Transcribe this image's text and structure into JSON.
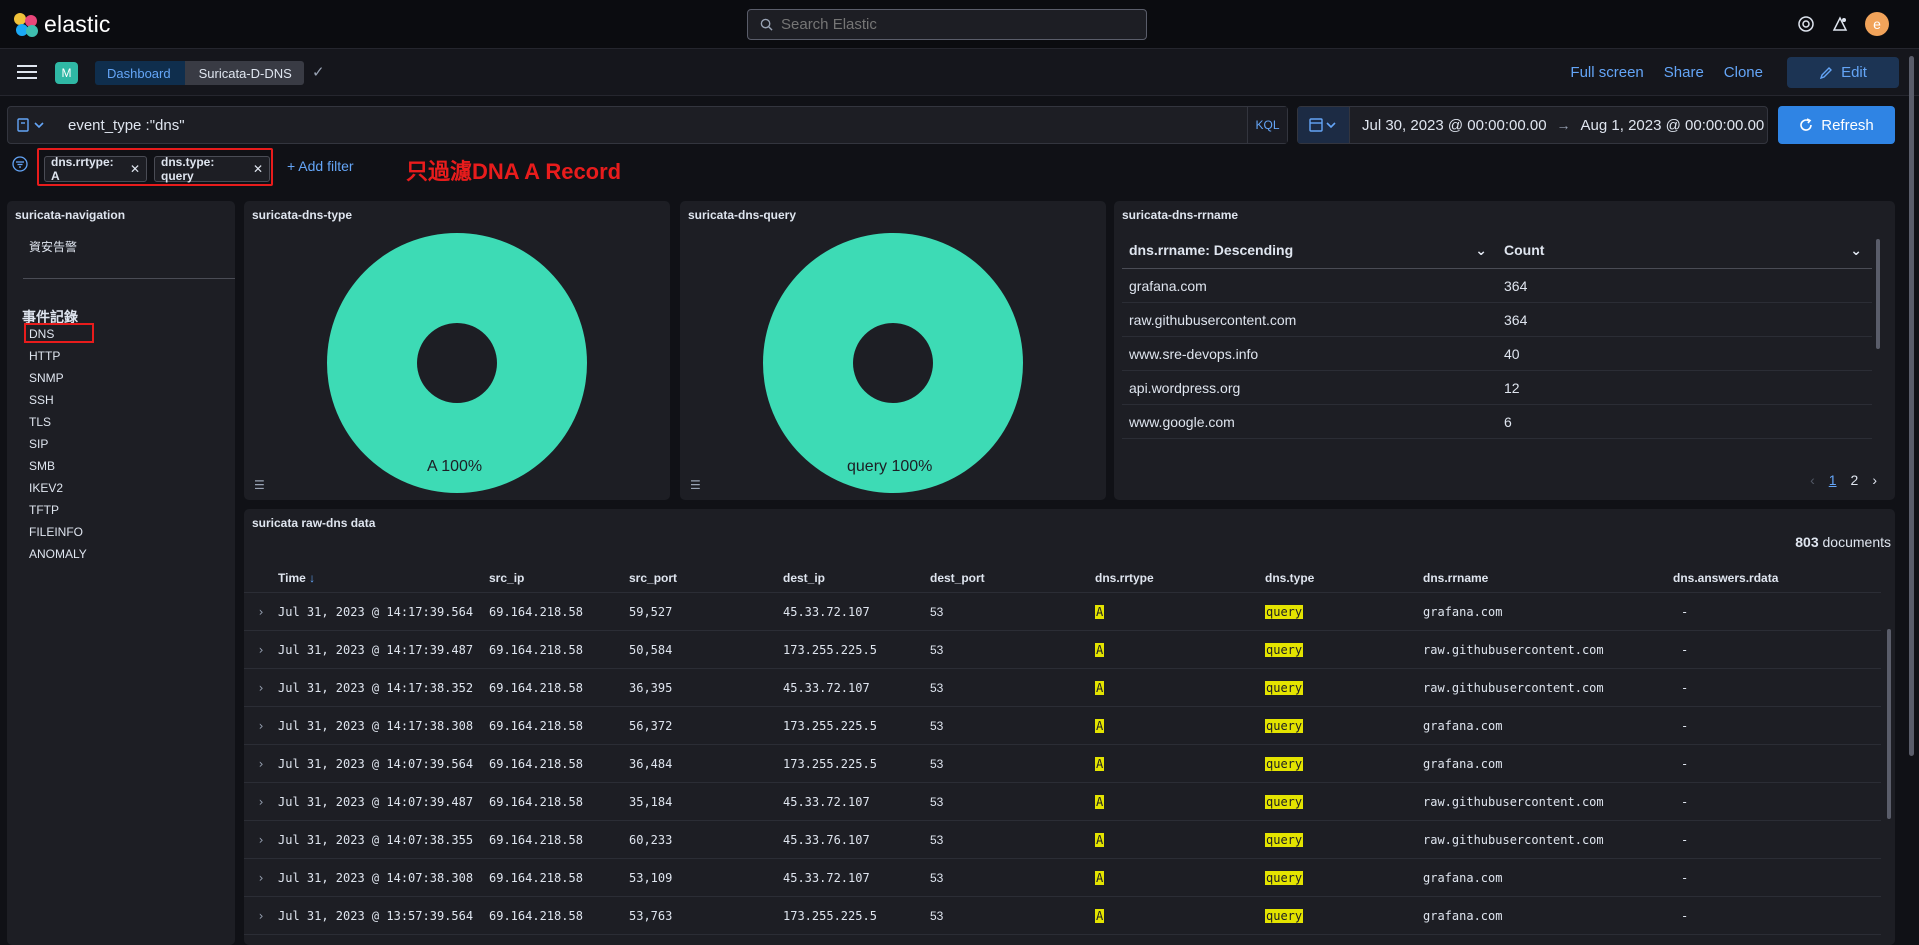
{
  "app": {
    "logo_text": "elastic",
    "search_placeholder": "Search Elastic",
    "avatar_letter": "e"
  },
  "nav": {
    "space_letter": "M",
    "breadcrumb_dashboard": "Dashboard",
    "breadcrumb_current": "Suricata-D-DNS",
    "full_screen": "Full screen",
    "share": "Share",
    "clone": "Clone",
    "edit": "Edit"
  },
  "query": {
    "value": "event_type :\"dns\"",
    "language": "KQL"
  },
  "time": {
    "start": "Jul 30, 2023 @ 00:00:00.00",
    "end": "Aug 1, 2023 @ 00:00:00.00",
    "refresh": "Refresh"
  },
  "filters": {
    "pills": [
      "dns.rrtype: A",
      "dns.type: query"
    ],
    "add_filter": "+ Add filter",
    "annotation": "只過濾DNA A Record"
  },
  "navigation_panel": {
    "title": "suricata-navigation",
    "top_item": "資安告警",
    "section_heading": "事件記錄",
    "items": [
      "DNS",
      "HTTP",
      "SNMP",
      "SSH",
      "TLS",
      "SIP",
      "SMB",
      "IKEV2",
      "TFTP",
      "FILEINFO",
      "ANOMALY"
    ]
  },
  "type_panel": {
    "title": "suricata-dns-type",
    "slice_label": "A 100%",
    "slice_color": "#3ddbb5"
  },
  "query_panel": {
    "title": "suricata-dns-query",
    "slice_label": "query 100%",
    "slice_color": "#3ddbb5"
  },
  "chart_data": [
    {
      "type": "pie",
      "title": "suricata-dns-type",
      "categories": [
        "A"
      ],
      "values": [
        100
      ]
    },
    {
      "type": "pie",
      "title": "suricata-dns-query",
      "categories": [
        "query"
      ],
      "values": [
        100
      ]
    }
  ],
  "rrname_panel": {
    "title": "suricata-dns-rrname",
    "col1": "dns.rrname: Descending",
    "col2": "Count",
    "rows": [
      {
        "name": "grafana.com",
        "count": "364"
      },
      {
        "name": "raw.githubusercontent.com",
        "count": "364"
      },
      {
        "name": "www.sre-devops.info",
        "count": "40"
      },
      {
        "name": "api.wordpress.org",
        "count": "12"
      },
      {
        "name": "www.google.com",
        "count": "6"
      }
    ],
    "page_current": "1",
    "page_next": "2"
  },
  "raw_panel": {
    "title": "suricata raw-dns data",
    "doc_count": "803",
    "doc_label": "documents",
    "columns": [
      "Time",
      "src_ip",
      "src_port",
      "dest_ip",
      "dest_port",
      "dns.rrtype",
      "dns.type",
      "dns.rrname",
      "dns.answers.rdata"
    ],
    "rows": [
      {
        "time": "Jul 31, 2023 @ 14:17:39.564",
        "src_ip": "69.164.218.58",
        "src_port": "59,527",
        "dest_ip": "45.33.72.107",
        "dest_port": "53",
        "rrtype": "A",
        "type": "query",
        "rrname": "grafana.com",
        "rdata": "-"
      },
      {
        "time": "Jul 31, 2023 @ 14:17:39.487",
        "src_ip": "69.164.218.58",
        "src_port": "50,584",
        "dest_ip": "173.255.225.5",
        "dest_port": "53",
        "rrtype": "A",
        "type": "query",
        "rrname": "raw.githubusercontent.com",
        "rdata": "-"
      },
      {
        "time": "Jul 31, 2023 @ 14:17:38.352",
        "src_ip": "69.164.218.58",
        "src_port": "36,395",
        "dest_ip": "45.33.72.107",
        "dest_port": "53",
        "rrtype": "A",
        "type": "query",
        "rrname": "raw.githubusercontent.com",
        "rdata": "-"
      },
      {
        "time": "Jul 31, 2023 @ 14:17:38.308",
        "src_ip": "69.164.218.58",
        "src_port": "56,372",
        "dest_ip": "173.255.225.5",
        "dest_port": "53",
        "rrtype": "A",
        "type": "query",
        "rrname": "grafana.com",
        "rdata": "-"
      },
      {
        "time": "Jul 31, 2023 @ 14:07:39.564",
        "src_ip": "69.164.218.58",
        "src_port": "36,484",
        "dest_ip": "173.255.225.5",
        "dest_port": "53",
        "rrtype": "A",
        "type": "query",
        "rrname": "grafana.com",
        "rdata": "-"
      },
      {
        "time": "Jul 31, 2023 @ 14:07:39.487",
        "src_ip": "69.164.218.58",
        "src_port": "35,184",
        "dest_ip": "45.33.72.107",
        "dest_port": "53",
        "rrtype": "A",
        "type": "query",
        "rrname": "raw.githubusercontent.com",
        "rdata": "-"
      },
      {
        "time": "Jul 31, 2023 @ 14:07:38.355",
        "src_ip": "69.164.218.58",
        "src_port": "60,233",
        "dest_ip": "45.33.76.107",
        "dest_port": "53",
        "rrtype": "A",
        "type": "query",
        "rrname": "raw.githubusercontent.com",
        "rdata": "-"
      },
      {
        "time": "Jul 31, 2023 @ 14:07:38.308",
        "src_ip": "69.164.218.58",
        "src_port": "53,109",
        "dest_ip": "45.33.72.107",
        "dest_port": "53",
        "rrtype": "A",
        "type": "query",
        "rrname": "grafana.com",
        "rdata": "-"
      },
      {
        "time": "Jul 31, 2023 @ 13:57:39.564",
        "src_ip": "69.164.218.58",
        "src_port": "53,763",
        "dest_ip": "173.255.225.5",
        "dest_port": "53",
        "rrtype": "A",
        "type": "query",
        "rrname": "grafana.com",
        "rdata": "-"
      }
    ]
  }
}
